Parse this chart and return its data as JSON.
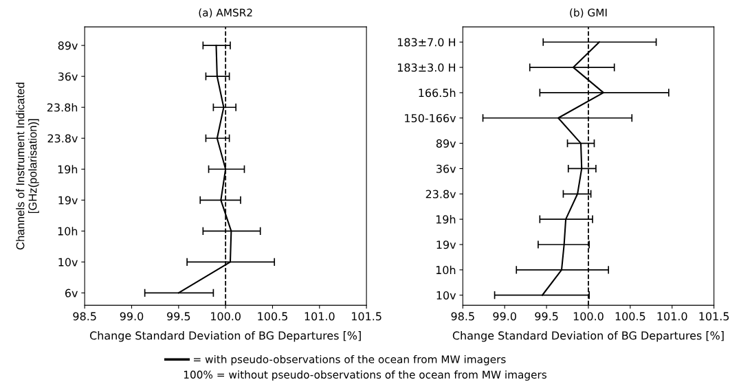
{
  "chart_data": [
    {
      "type": "line",
      "title": "(a) AMSR2",
      "orientation": "horizontal",
      "xlabel": "Change Standard Deviation of BG Departures [%]",
      "ylabel": "Channels of Instrument Indicated\n[GHz(polarisation)]",
      "categories": [
        "89v",
        "36v",
        "23.8h",
        "23.8v",
        "19h",
        "19v",
        "10h",
        "10v",
        "6v"
      ],
      "series": [
        {
          "name": "= with pseudo-observations of the ocean from MW imagers",
          "color": "#000000",
          "values": [
            99.9,
            99.91,
            99.98,
            99.91,
            100.0,
            99.95,
            100.06,
            100.05,
            99.5
          ],
          "errors": [
            [
              99.76,
              100.05
            ],
            [
              99.79,
              100.04
            ],
            [
              99.87,
              100.11
            ],
            [
              99.79,
              100.04
            ],
            [
              99.82,
              100.2
            ],
            [
              99.73,
              100.16
            ],
            [
              99.76,
              100.37
            ],
            [
              99.59,
              100.52
            ],
            [
              99.14,
              99.87
            ]
          ]
        }
      ],
      "xlim": [
        98.5,
        101.5
      ],
      "xticks": [
        {
          "value": 98.5,
          "label": "98.5"
        },
        {
          "value": 99.0,
          "label": "99.0"
        },
        {
          "value": 99.5,
          "label": "99.5"
        },
        {
          "value": 100.0,
          "label": "100.0"
        },
        {
          "value": 100.5,
          "label": "100.5"
        },
        {
          "value": 101.0,
          "label": "101.0"
        },
        {
          "value": 101.5,
          "label": "101.5"
        }
      ],
      "ref_lines": [
        {
          "axis": "x",
          "value": 100.0,
          "color": "#000000",
          "line_style": "dashed"
        }
      ],
      "legend": "bottom",
      "marker": "none",
      "line_style": "solid",
      "grid": false,
      "annotations": [
        "100% = without pseudo-observations of the ocean from MW imagers"
      ]
    },
    {
      "type": "line",
      "title": "(b) GMI",
      "orientation": "horizontal",
      "xlabel": "Change Standard Deviation of BG Departures [%]",
      "categories": [
        "183±7.0 H",
        "183±3.0 H",
        "166.5h",
        "150-166v",
        "89v",
        "36v",
        "23.8v",
        "19h",
        "19v",
        "10h",
        "10v"
      ],
      "series": [
        {
          "color": "#000000",
          "values": [
            100.13,
            99.82,
            100.18,
            99.64,
            99.91,
            99.92,
            99.87,
            99.73,
            99.71,
            99.68,
            99.45
          ],
          "errors": [
            [
              99.46,
              100.81
            ],
            [
              99.3,
              100.31
            ],
            [
              99.42,
              100.96
            ],
            [
              98.74,
              100.52
            ],
            [
              99.75,
              100.07
            ],
            [
              99.76,
              100.09
            ],
            [
              99.7,
              100.03
            ],
            [
              99.42,
              100.05
            ],
            [
              99.4,
              100.01
            ],
            [
              99.14,
              100.24
            ],
            [
              98.88,
              100.01
            ]
          ]
        }
      ],
      "xlim": [
        98.5,
        101.5
      ],
      "xticks": [
        {
          "value": 98.5,
          "label": "98.5"
        },
        {
          "value": 99.0,
          "label": "99.0"
        },
        {
          "value": 99.5,
          "label": "99.5"
        },
        {
          "value": 100.0,
          "label": "100.0"
        },
        {
          "value": 100.5,
          "label": "100.5"
        },
        {
          "value": 101.0,
          "label": "101.0"
        },
        {
          "value": 101.5,
          "label": "101.5"
        }
      ],
      "ref_lines": [
        {
          "axis": "x",
          "value": 100.0,
          "color": "#000000",
          "line_style": "dashed"
        }
      ],
      "marker": "none",
      "line_style": "solid",
      "grid": false
    }
  ]
}
